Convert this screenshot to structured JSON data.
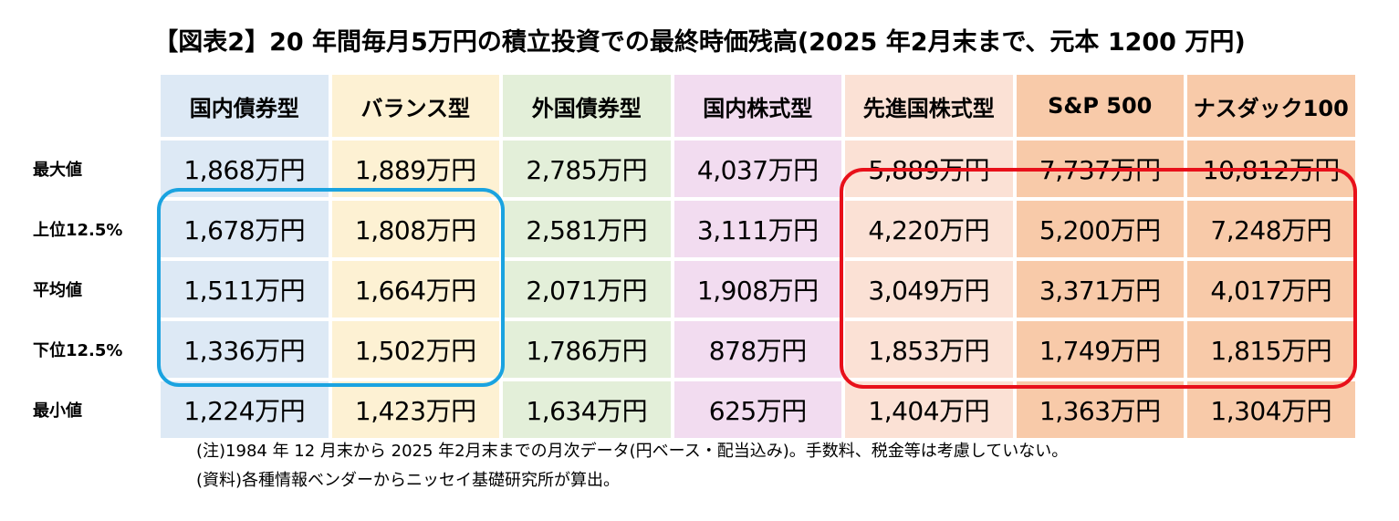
{
  "title": "【図表2】20 年間毎月5万円の積立投資での最終時価残高(2025 年2月末まで、元本 1200 万円)",
  "columns": [
    {
      "label": "国内債券型",
      "color": "#dde9f5"
    },
    {
      "label": "バランス型",
      "color": "#fdf1d3"
    },
    {
      "label": "外国債券型",
      "color": "#e3efd9"
    },
    {
      "label": "国内株式型",
      "color": "#f2dcf0"
    },
    {
      "label": "先進国株式型",
      "color": "#fbe1d5"
    },
    {
      "label": "S&P 500",
      "color": "#f8caa9"
    },
    {
      "label": "ナスダック100",
      "color": "#f8caa9"
    }
  ],
  "rows": [
    {
      "label": "最大値",
      "values": [
        "1,868万円",
        "1,889万円",
        "2,785万円",
        "4,037万円",
        "5,889万円",
        "7,737万円",
        "10,812万円"
      ]
    },
    {
      "label": "上位12.5%",
      "values": [
        "1,678万円",
        "1,808万円",
        "2,581万円",
        "3,111万円",
        "4,220万円",
        "5,200万円",
        "7,248万円"
      ]
    },
    {
      "label": "平均値",
      "values": [
        "1,511万円",
        "1,664万円",
        "2,071万円",
        "1,908万円",
        "3,049万円",
        "3,371万円",
        "4,017万円"
      ]
    },
    {
      "label": "下位12.5%",
      "values": [
        "1,336万円",
        "1,502万円",
        "1,786万円",
        "878万円",
        "1,853万円",
        "1,749万円",
        "1,815万円"
      ]
    },
    {
      "label": "最小値",
      "values": [
        "1,224万円",
        "1,423万円",
        "1,634万円",
        "625万円",
        "1,404万円",
        "1,363万円",
        "1,304万円"
      ]
    }
  ],
  "notes": {
    "note": "(注)1984 年 12 月末から 2025 年2月末までの月次データ(円ベース・配当込み)。手数料、税金等は考慮していない。",
    "source": "(資料)各種情報ベンダーからニッセイ基礎研究所が算出。"
  },
  "highlights": {
    "blue": "#1aa3e0",
    "red": "#e8101a"
  }
}
